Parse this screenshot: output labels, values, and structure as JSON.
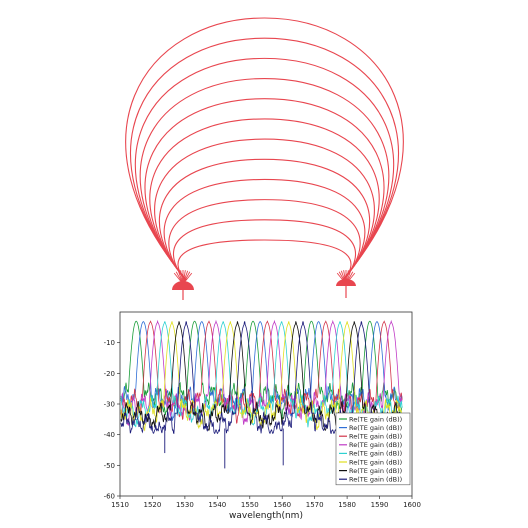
{
  "device": {
    "arc_count": 12,
    "arc_color": "#e8464f",
    "coupler_color": "#e8464f"
  },
  "chart_data": {
    "type": "line",
    "title": "",
    "xlabel": "wavelength(nm)",
    "ylabel": "",
    "xlim": [
      1510,
      1600
    ],
    "ylim": [
      -60,
      0
    ],
    "xticks": [
      1510,
      1520,
      1530,
      1540,
      1550,
      1560,
      1570,
      1580,
      1590,
      1600
    ],
    "yticks": [
      -10,
      -20,
      -30,
      -40,
      -50,
      -60
    ],
    "grid": false,
    "legend_position": "bottom-right",
    "series": [
      {
        "name": "Re(TE gain (dB))",
        "color": "#1a9e3a",
        "peaks": [
          1515.0,
          1533.0,
          1551.0,
          1569.0,
          1587.0
        ],
        "base": -27,
        "depth": -36
      },
      {
        "name": "Re(TE gain (dB))",
        "color": "#2f6fd6",
        "peaks": [
          1517.2,
          1535.2,
          1553.2,
          1571.2,
          1589.2
        ],
        "base": -28,
        "depth": -36
      },
      {
        "name": "Re(TE gain (dB))",
        "color": "#d2344a",
        "peaks": [
          1519.4,
          1537.4,
          1555.4,
          1573.4,
          1591.4
        ],
        "base": -29,
        "depth": -37
      },
      {
        "name": "Re(TE gain (dB))",
        "color": "#c03bc6",
        "peaks": [
          1521.6,
          1539.6,
          1557.6,
          1575.6,
          1593.6
        ],
        "base": -30,
        "depth": -37
      },
      {
        "name": "Re(TE gain (dB))",
        "color": "#2ed1d1",
        "peaks": [
          1523.8,
          1541.8,
          1559.8,
          1577.8
        ],
        "base": -31,
        "depth": -37
      },
      {
        "name": "Re(TE gain (dB))",
        "color": "#e0e020",
        "peaks": [
          1526.0,
          1544.0,
          1562.0,
          1580.0
        ],
        "base": -32,
        "depth": -38
      },
      {
        "name": "Re(TE gain (dB))",
        "color": "#111111",
        "peaks": [
          1528.2,
          1546.2,
          1564.2,
          1582.2
        ],
        "base": -33,
        "depth": -38
      },
      {
        "name": "Re(TE gain (dB))",
        "color": "#1b1b7a",
        "peaks": [
          1530.4,
          1548.4,
          1566.4,
          1584.4
        ],
        "base": -36,
        "depth": -39
      }
    ],
    "dips": [
      {
        "x": 1523.8,
        "y": -46
      },
      {
        "x": 1542.3,
        "y": -51
      },
      {
        "x": 1560.3,
        "y": -50
      }
    ]
  }
}
